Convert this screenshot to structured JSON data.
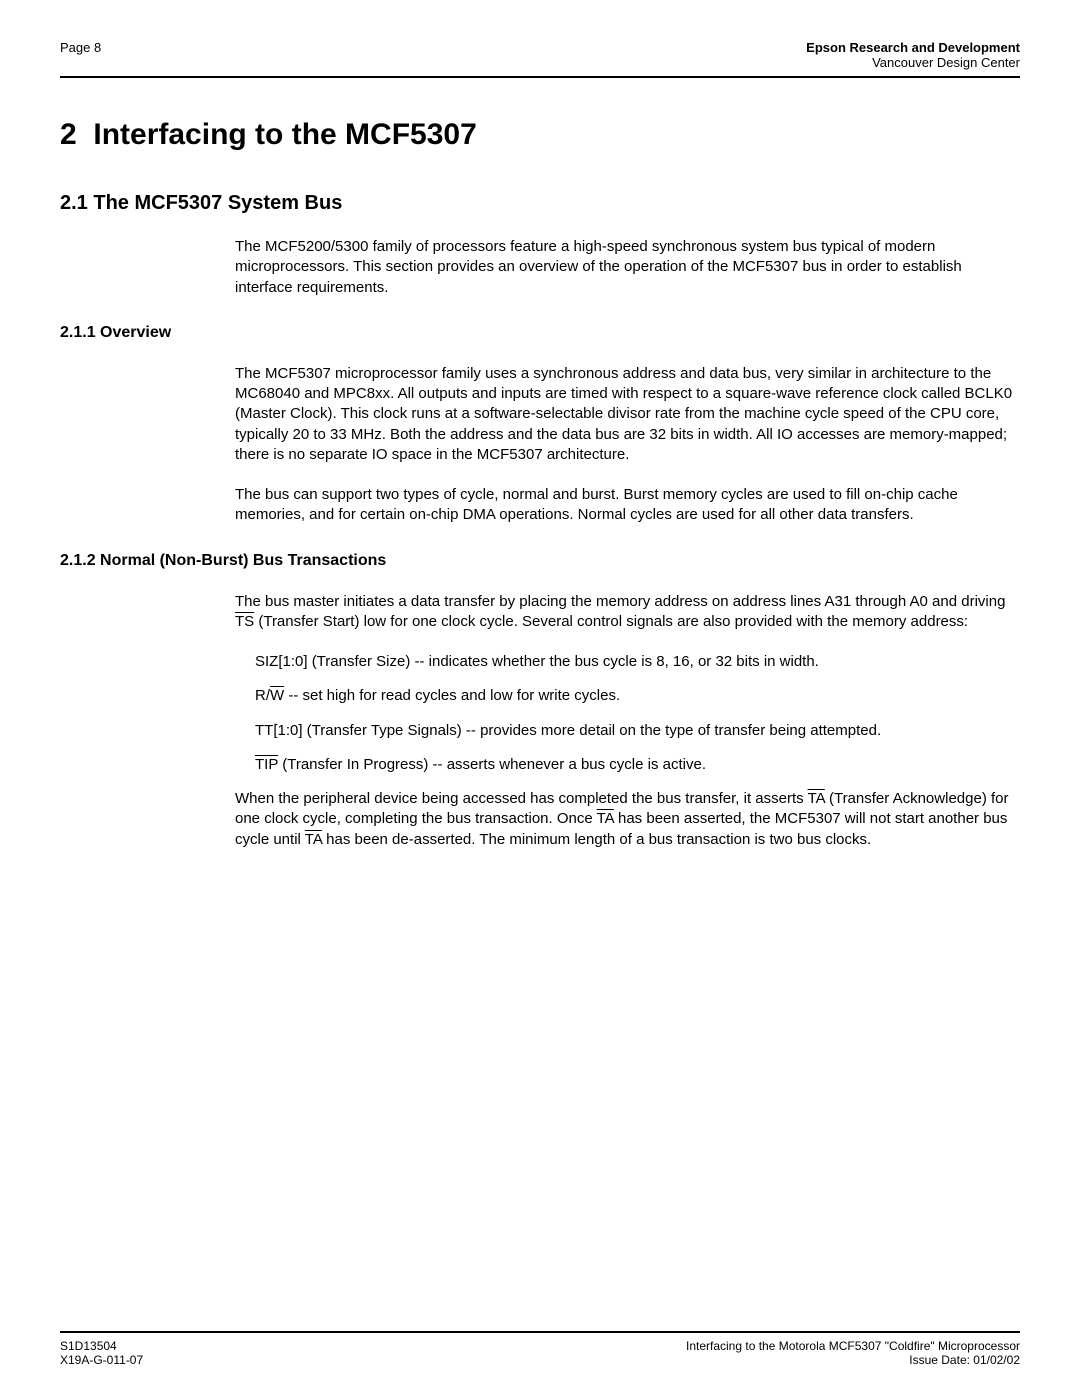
{
  "header": {
    "page_label": "Page 8",
    "org_bold": "Epson Research and Development",
    "org_sub": "Vancouver Design Center"
  },
  "section": {
    "number": "2",
    "title": "Interfacing to the MCF5307"
  },
  "subsection_2_1": {
    "heading": "2.1  The MCF5307 System Bus",
    "para1": "The MCF5200/5300 family of processors feature a high-speed synchronous system bus typical of modern microprocessors. This section provides an overview of the operation of the MCF5307 bus in order to establish interface requirements."
  },
  "subsection_2_1_1": {
    "heading": "2.1.1  Overview",
    "para1": "The MCF5307 microprocessor family uses a synchronous address and data bus, very similar in architecture to the MC68040 and MPC8xx. All outputs and inputs are timed with respect to a square-wave reference clock called BCLK0 (Master Clock). This clock runs at a software-selectable divisor rate from the machine cycle speed of the CPU core, typically 20 to 33 MHz. Both the address and the data bus are 32 bits in width. All IO accesses are memory-mapped; there is no separate IO space in the MCF5307 architecture.",
    "para2_a": "The bus can support two types of cycle, normal and burst. Burst memory cycles are used to fill on-chip cache memories, and for certain on-chip DMA operations. ",
    "para2_b": "Normal cycles ",
    "para2_c": "are used for all other data transfers."
  },
  "subsection_2_1_2": {
    "heading": "2.1.2  Normal (Non-Burst) Bus Transactions",
    "para1_a": "The bus master initiates a data transfer by placing the memory address on address lines A31 through A0 and driving ",
    "para1_ts": "TS",
    "para1_b": " (Transfer Start) low for one clock cycle. Several control signals are also provided with the memory address:",
    "li1": "SIZ[1:0] (Transfer Size) -- indicates whether the bus cycle is 8, 16, or 32 bits in width.",
    "li2_a": "R/",
    "li2_w": "W",
    "li2_b": " -- set high for read cycles and low for write cycles.",
    "li3": "TT[1:0] (Transfer Type Signals) -- provides more detail on the type of transfer being attempted.",
    "li4_tip": "TIP",
    "li4_b": " (Transfer In Progress) -- asserts whenever a bus cycle is active.",
    "para2_a": "When the peripheral device being accessed has completed the bus transfer, it asserts ",
    "para2_ta1": "TA",
    "para2_b": " (Transfer Acknowledge) for one clock cycle, completing the bus transaction. Once ",
    "para2_ta2": "TA",
    "para2_c": " has been asserted, the MCF5307 will not start another bus cycle until ",
    "para2_ta3": "TA",
    "para2_d": " has been de-asserted. The minimum length of a bus transaction is two bus clocks."
  },
  "footer": {
    "left1": "S1D13504",
    "left2": "X19A-G-011-07",
    "right1": "Interfacing to the Motorola MCF5307 \"Coldfire\" Microprocessor",
    "right2": "Issue Date: 01/02/02"
  }
}
